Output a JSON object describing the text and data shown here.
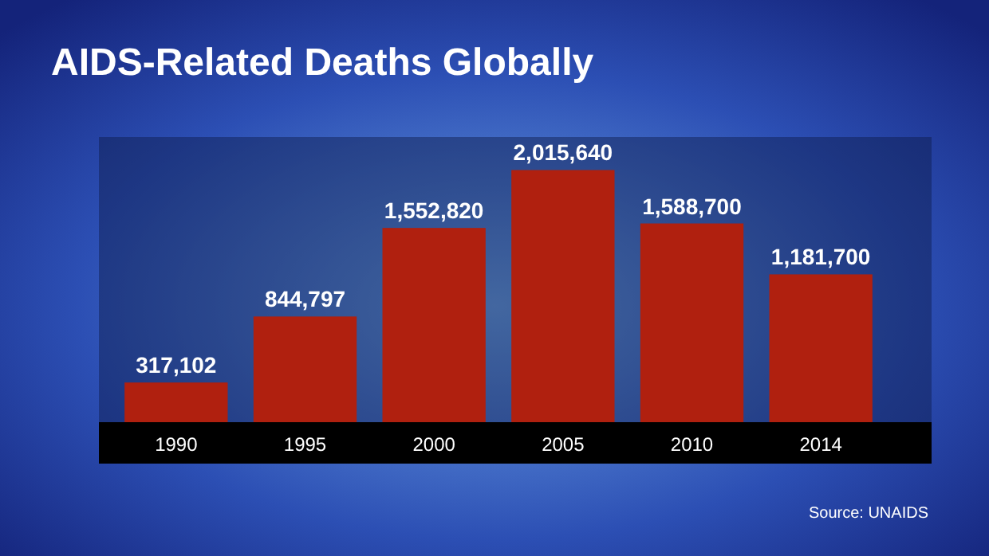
{
  "chart_data": {
    "type": "bar",
    "title": "AIDS-Related Deaths Globally",
    "categories": [
      "1990",
      "1995",
      "2000",
      "2005",
      "2010",
      "2014"
    ],
    "values": [
      317102,
      844797,
      1552820,
      2015640,
      1588700,
      1181700
    ],
    "value_labels": [
      "317,102",
      "844,797",
      "1,552,820",
      "2,015,640",
      "1,588,700",
      "1,181,700"
    ],
    "color": "#b0200f",
    "annotations": [
      "Source: UNAIDS"
    ]
  }
}
